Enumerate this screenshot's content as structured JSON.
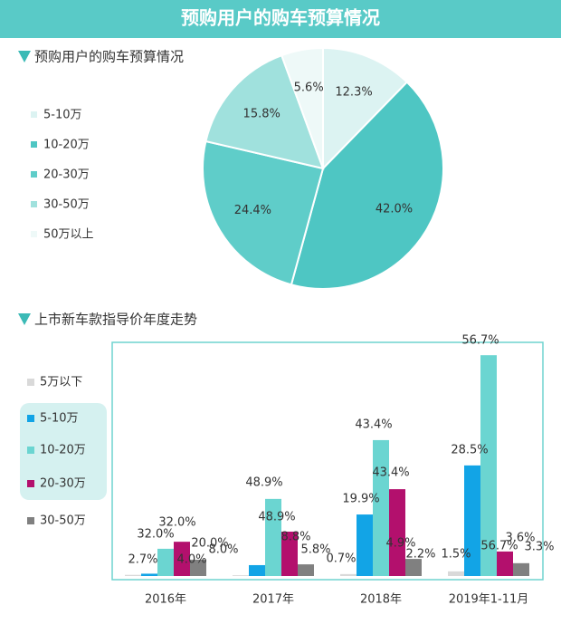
{
  "header": {
    "title": "预购用户的购车预算情况"
  },
  "chart_data": [
    {
      "type": "pie",
      "title": "预购用户的购车预算情况",
      "categories": [
        "5-10万",
        "10-20万",
        "20-30万",
        "30-50万",
        "50万以上"
      ],
      "values": [
        12.3,
        42.0,
        24.4,
        15.8,
        5.6
      ],
      "value_labels": [
        "12.3%",
        "42.0%",
        "24.4%",
        "15.8%",
        "5.6%"
      ],
      "colors": [
        "#dcf3f2",
        "#4ec6c3",
        "#5fcdc9",
        "#a0e1dd",
        "#eef9f8"
      ]
    },
    {
      "type": "bar",
      "title": "上市新车款指导价年度走势",
      "categories": [
        "2016年",
        "2017年",
        "2018年",
        "2019年1-11月"
      ],
      "series": [
        {
          "name": "5万以下",
          "color": "#d9d9d9",
          "values": [
            0.3,
            0.2,
            0.5,
            1.2
          ]
        },
        {
          "name": "5-10万",
          "color": "#12a4e6",
          "values": [
            0.6,
            2.8,
            15.8,
            28.4
          ]
        },
        {
          "name": "10-20万",
          "color": "#6bd5d1",
          "values": [
            7.0,
            19.8,
            34.9,
            56.7
          ]
        },
        {
          "name": "20-30万",
          "color": "#b3106d",
          "values": [
            8.8,
            11.4,
            22.3,
            6.3
          ]
        },
        {
          "name": "30-50万",
          "color": "#808080",
          "values": [
            4.2,
            3.0,
            4.4,
            3.3
          ]
        }
      ],
      "ylim": [
        0,
        60
      ],
      "annotations": [
        "2.7%",
        "32.0%",
        "32.0%",
        "4.0%",
        "20.0%",
        "8.0%",
        "48.9%",
        "48.9%",
        "8.8%",
        "5.8%",
        "0.7%",
        "19.9%",
        "43.4%",
        "43.4%",
        "4.9%",
        "2.2%",
        "1.5%",
        "28.5%",
        "56.7%",
        "56.7%",
        "3.6%",
        "3.3%"
      ]
    }
  ]
}
